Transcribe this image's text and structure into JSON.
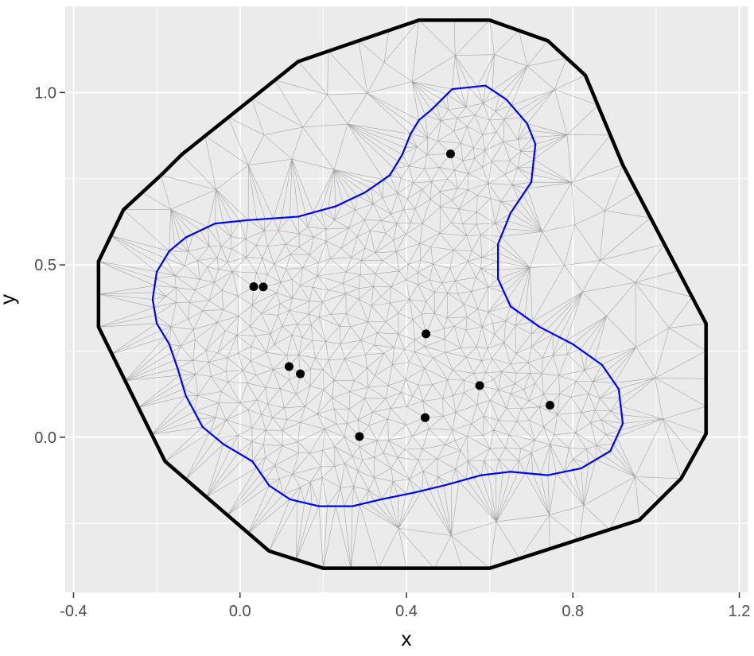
{
  "chart_data": {
    "type": "scatter",
    "title": "",
    "xlabel": "x",
    "ylabel": "y",
    "xlim": [
      -0.42,
      1.22
    ],
    "ylim": [
      -0.45,
      1.25
    ],
    "x_ticks": [
      -0.4,
      0.0,
      0.4,
      0.8,
      1.2
    ],
    "x_tick_labels": [
      "-0.4",
      "0.0",
      "0.4",
      "0.8",
      "1.2"
    ],
    "y_ticks": [
      0.0,
      0.5,
      1.0
    ],
    "y_tick_labels": [
      "0.0",
      "0.5",
      "1.0"
    ],
    "grid": true,
    "panel_background": "#ebebeb",
    "mesh_color": "#a6a6a6",
    "boundary_color": "#000000",
    "inner_boundary_color": "#0000ff",
    "points": [
      {
        "x": 0.506,
        "y": 0.822
      },
      {
        "x": 0.033,
        "y": 0.437
      },
      {
        "x": 0.056,
        "y": 0.436
      },
      {
        "x": 0.447,
        "y": 0.3
      },
      {
        "x": 0.118,
        "y": 0.205
      },
      {
        "x": 0.145,
        "y": 0.184
      },
      {
        "x": 0.576,
        "y": 0.15
      },
      {
        "x": 0.745,
        "y": 0.093
      },
      {
        "x": 0.445,
        "y": 0.057
      },
      {
        "x": 0.287,
        "y": 0.002
      }
    ],
    "outer_boundary": [
      [
        0.43,
        1.21
      ],
      [
        0.6,
        1.21
      ],
      [
        0.74,
        1.15
      ],
      [
        0.83,
        1.05
      ],
      [
        0.92,
        0.79
      ],
      [
        1.12,
        0.33
      ],
      [
        1.12,
        0.01
      ],
      [
        1.06,
        -0.12
      ],
      [
        0.96,
        -0.24
      ],
      [
        0.6,
        -0.38
      ],
      [
        0.2,
        -0.38
      ],
      [
        0.07,
        -0.33
      ],
      [
        -0.18,
        -0.07
      ],
      [
        -0.34,
        0.32
      ],
      [
        -0.34,
        0.51
      ],
      [
        -0.28,
        0.66
      ],
      [
        -0.19,
        0.76
      ],
      [
        -0.14,
        0.82
      ],
      [
        0.14,
        1.09
      ]
    ],
    "inner_boundary": [
      [
        0.46,
        0.95
      ],
      [
        0.51,
        1.01
      ],
      [
        0.59,
        1.02
      ],
      [
        0.64,
        0.98
      ],
      [
        0.69,
        0.91
      ],
      [
        0.71,
        0.85
      ],
      [
        0.7,
        0.74
      ],
      [
        0.65,
        0.65
      ],
      [
        0.62,
        0.56
      ],
      [
        0.62,
        0.46
      ],
      [
        0.65,
        0.38
      ],
      [
        0.72,
        0.32
      ],
      [
        0.8,
        0.27
      ],
      [
        0.87,
        0.21
      ],
      [
        0.91,
        0.14
      ],
      [
        0.92,
        0.04
      ],
      [
        0.89,
        -0.04
      ],
      [
        0.82,
        -0.09
      ],
      [
        0.74,
        -0.11
      ],
      [
        0.65,
        -0.1
      ],
      [
        0.58,
        -0.11
      ],
      [
        0.49,
        -0.14
      ],
      [
        0.42,
        -0.16
      ],
      [
        0.34,
        -0.18
      ],
      [
        0.27,
        -0.2
      ],
      [
        0.19,
        -0.2
      ],
      [
        0.12,
        -0.18
      ],
      [
        0.07,
        -0.14
      ],
      [
        0.03,
        -0.07
      ],
      [
        -0.04,
        -0.02
      ],
      [
        -0.09,
        0.03
      ],
      [
        -0.13,
        0.12
      ],
      [
        -0.15,
        0.2
      ],
      [
        -0.17,
        0.27
      ],
      [
        -0.2,
        0.33
      ],
      [
        -0.21,
        0.4
      ],
      [
        -0.2,
        0.48
      ],
      [
        -0.17,
        0.54
      ],
      [
        -0.13,
        0.58
      ],
      [
        -0.06,
        0.62
      ],
      [
        0.02,
        0.63
      ],
      [
        0.14,
        0.64
      ],
      [
        0.23,
        0.67
      ],
      [
        0.3,
        0.71
      ],
      [
        0.36,
        0.76
      ],
      [
        0.39,
        0.82
      ],
      [
        0.41,
        0.88
      ],
      [
        0.43,
        0.92
      ]
    ]
  }
}
